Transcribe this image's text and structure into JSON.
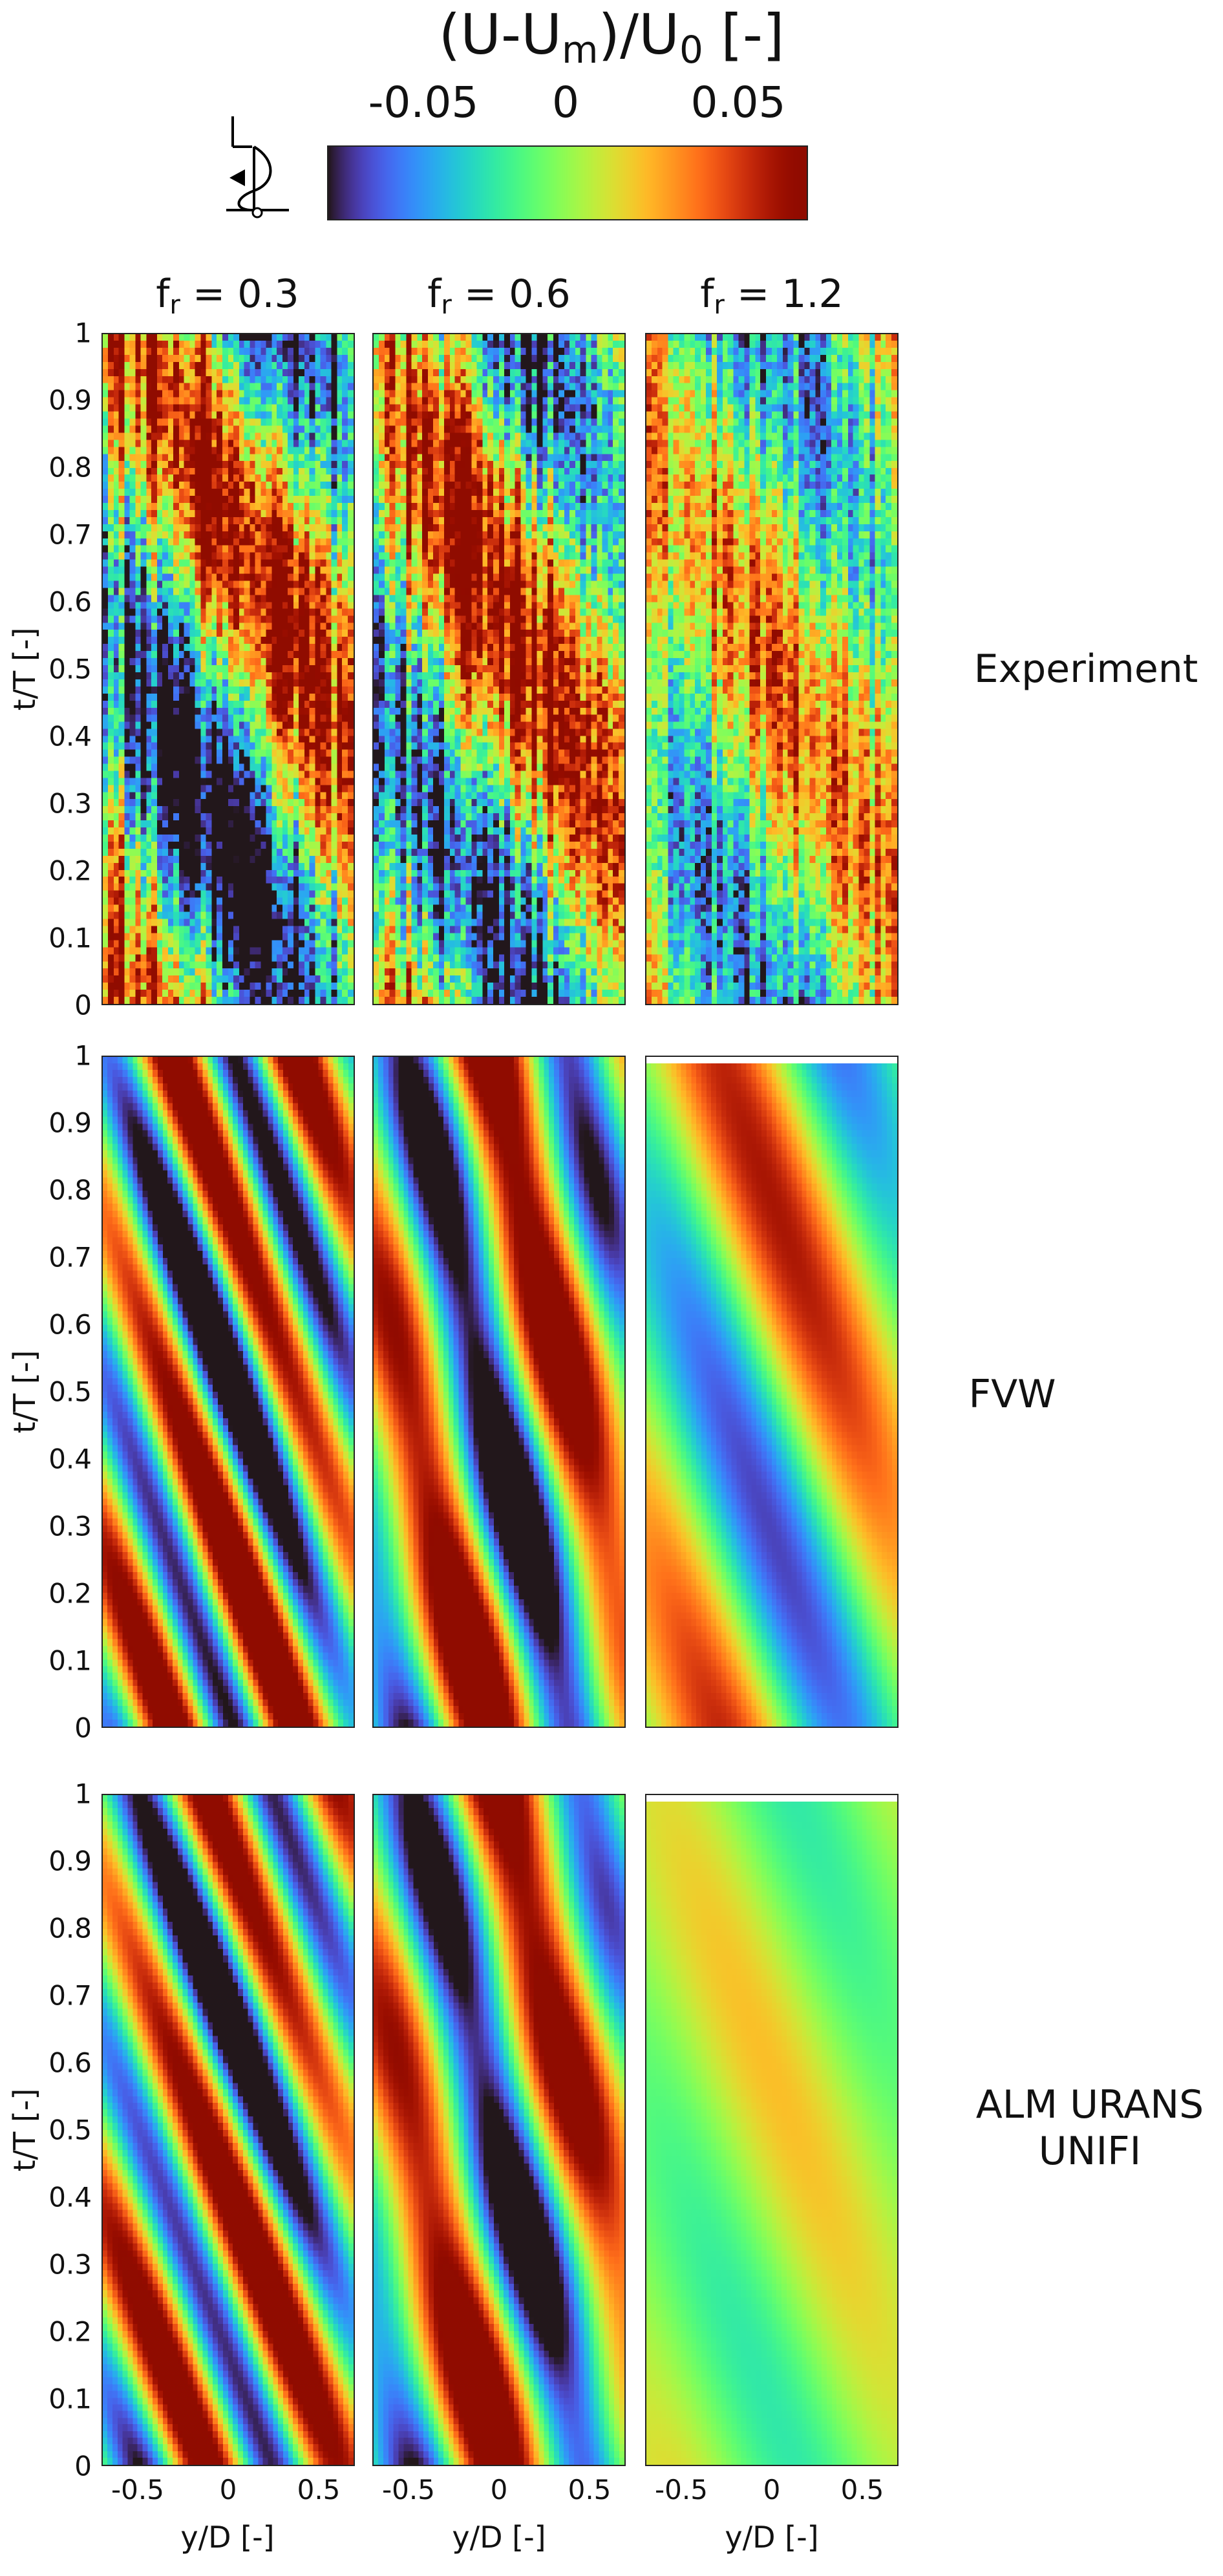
{
  "colorbar": {
    "title_main": "(U-U",
    "title_sub1": "m",
    "title_mid": ")/U",
    "title_sub2": "0",
    "title_end": " [-]",
    "ticks": [
      "-0.05",
      "0",
      "0.05"
    ],
    "tick_values": [
      -0.05,
      0,
      0.05
    ],
    "range": [
      -0.07,
      0.07
    ],
    "colormap": "turbo"
  },
  "chart_data": {
    "type": "heatmap",
    "rows": [
      "Experiment",
      "FVW",
      "ALM URANS UNIFI"
    ],
    "row_labels": [
      [
        "Experiment"
      ],
      [
        "FVW"
      ],
      [
        "ALM URANS",
        "UNIFI"
      ]
    ],
    "columns": [
      {
        "base": "f",
        "sub": "r",
        "value": " = 0.3"
      },
      {
        "base": "f",
        "sub": "r",
        "value": " = 0.6"
      },
      {
        "base": "f",
        "sub": "r",
        "value": " = 1.2"
      }
    ],
    "xlabel": "y/D [-]",
    "ylabel": "t/T [-]",
    "xlim": [
      -0.7,
      0.7
    ],
    "ylim": [
      0,
      1
    ],
    "xticks": [
      "-0.5",
      "0",
      "0.5"
    ],
    "xtick_values": [
      -0.5,
      0,
      0.5
    ],
    "yticks": [
      "0",
      "0.1",
      "0.2",
      "0.3",
      "0.4",
      "0.5",
      "0.6",
      "0.7",
      "0.8",
      "0.9",
      "1"
    ],
    "ytick_values": [
      0,
      0.1,
      0.2,
      0.3,
      0.4,
      0.5,
      0.6,
      0.7,
      0.8,
      0.9,
      1.0
    ],
    "fields": [
      [
        {
          "comps": [
            {
              "k": 1,
              "w": 1.0,
              "p": 3.3,
              "a": 0.08
            }
          ],
          "noise": 0.025,
          "grid": [
            46,
            95
          ]
        },
        {
          "comps": [
            {
              "k": 1,
              "w": 1.0,
              "p": 4.1,
              "a": 0.07
            }
          ],
          "noise": 0.025,
          "grid": [
            46,
            95
          ]
        },
        {
          "comps": [
            {
              "k": 1,
              "w": 1.0,
              "p": 4.7,
              "a": 0.045
            }
          ],
          "noise": 0.02,
          "grid": [
            46,
            95
          ]
        }
      ],
      [
        {
          "comps": [
            {
              "k": 2,
              "w": 2.8,
              "p": 4.4,
              "a": 0.09
            },
            {
              "k": 1,
              "w": 0.4,
              "p": 1.0,
              "a": 0.02
            }
          ],
          "noise": 0,
          "grid": [
            50,
            100
          ]
        },
        {
          "comps": [
            {
              "k": 1,
              "w": 2.1,
              "p": 2.0,
              "a": 0.09
            },
            {
              "k": 2,
              "w": 0.5,
              "p": 0.5,
              "a": 0.02
            }
          ],
          "noise": 0,
          "grid": [
            50,
            100
          ]
        },
        {
          "comps": [
            {
              "k": 1,
              "w": 1.3,
              "p": 2.9,
              "a": 0.06
            }
          ],
          "noise": 0,
          "grid": [
            50,
            100
          ],
          "blank_top": 0.01
        }
      ],
      [
        {
          "comps": [
            {
              "k": 2,
              "w": 2.6,
              "p": 2.6,
              "a": 0.085
            },
            {
              "k": 1,
              "w": 0.5,
              "p": 0.3,
              "a": 0.02
            }
          ],
          "noise": 0,
          "grid": [
            50,
            100
          ]
        },
        {
          "comps": [
            {
              "k": 1,
              "w": 2.0,
              "p": 1.6,
              "a": 0.085
            },
            {
              "k": 2,
              "w": 0.5,
              "p": 0.3,
              "a": 0.02
            }
          ],
          "noise": 0,
          "grid": [
            50,
            100
          ]
        },
        {
          "comps": [
            {
              "k": 1,
              "w": 1.2,
              "p": 4.2,
              "a": 0.022
            }
          ],
          "noise": 0,
          "grid": [
            50,
            100
          ],
          "blank_top": 0.01
        }
      ]
    ]
  }
}
